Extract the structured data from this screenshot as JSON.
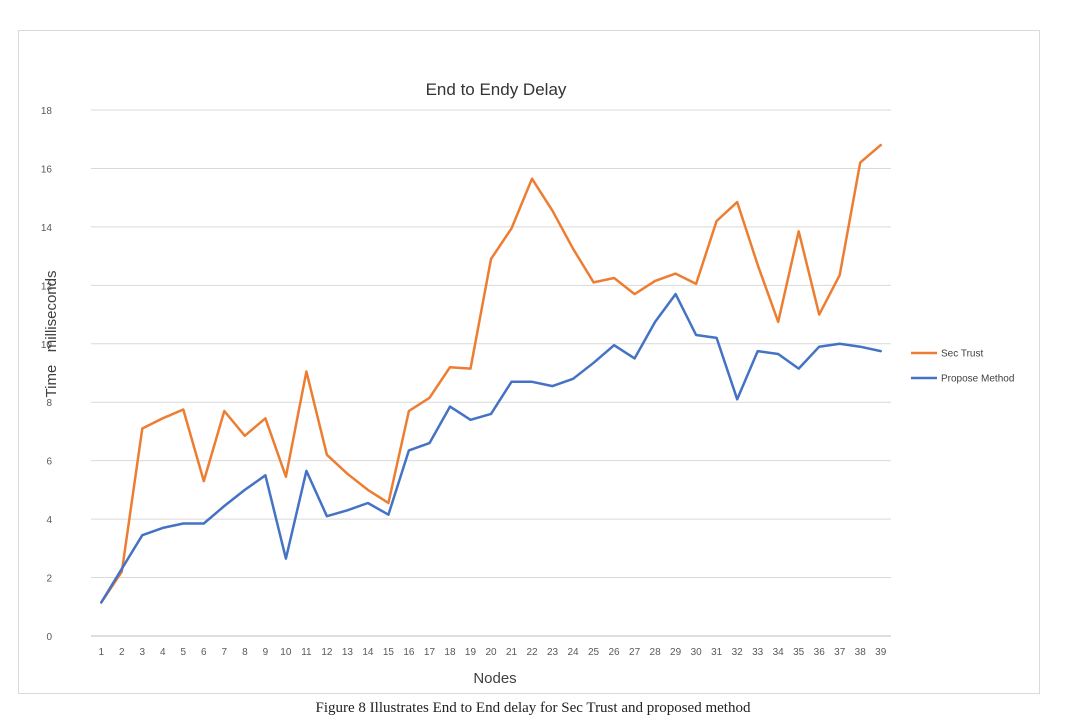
{
  "caption": "Figure 8 Illustrates End to End delay for Sec Trust and proposed method",
  "chart_data": {
    "type": "line",
    "title": "End to Endy Delay",
    "xlabel": "Nodes",
    "ylabel": "Time   milliseconds",
    "ylim": [
      0,
      18
    ],
    "ytick_step": 2,
    "grid": true,
    "legend_position": "right",
    "x": [
      1,
      2,
      3,
      4,
      5,
      6,
      7,
      8,
      9,
      10,
      11,
      12,
      13,
      14,
      15,
      16,
      17,
      18,
      19,
      20,
      21,
      22,
      23,
      24,
      25,
      26,
      27,
      28,
      29,
      30,
      31,
      32,
      33,
      34,
      35,
      36,
      37,
      38,
      39
    ],
    "series": [
      {
        "name": "Sec Trust",
        "color": "#ED7D31",
        "values": [
          1.15,
          2.2,
          7.1,
          7.45,
          7.75,
          5.3,
          7.7,
          6.85,
          7.45,
          5.45,
          9.05,
          6.2,
          5.55,
          5.0,
          4.55,
          7.7,
          8.15,
          9.2,
          9.15,
          12.9,
          13.95,
          15.65,
          14.55,
          13.25,
          12.1,
          12.25,
          11.7,
          12.15,
          12.4,
          12.05,
          14.2,
          14.85,
          12.7,
          10.75,
          13.85,
          11.0,
          12.35,
          16.2,
          16.8
        ]
      },
      {
        "name": "Propose Method",
        "color": "#4472C4",
        "values": [
          1.15,
          2.3,
          3.45,
          3.7,
          3.85,
          3.85,
          4.45,
          5.0,
          5.5,
          2.65,
          5.65,
          4.1,
          4.3,
          4.55,
          4.15,
          6.35,
          6.6,
          7.85,
          7.4,
          7.6,
          8.7,
          8.7,
          8.55,
          8.8,
          9.35,
          9.95,
          9.5,
          10.75,
          11.7,
          10.3,
          10.2,
          8.1,
          9.75,
          9.65,
          9.15,
          9.9,
          10.0,
          9.9,
          9.75
        ]
      }
    ]
  }
}
